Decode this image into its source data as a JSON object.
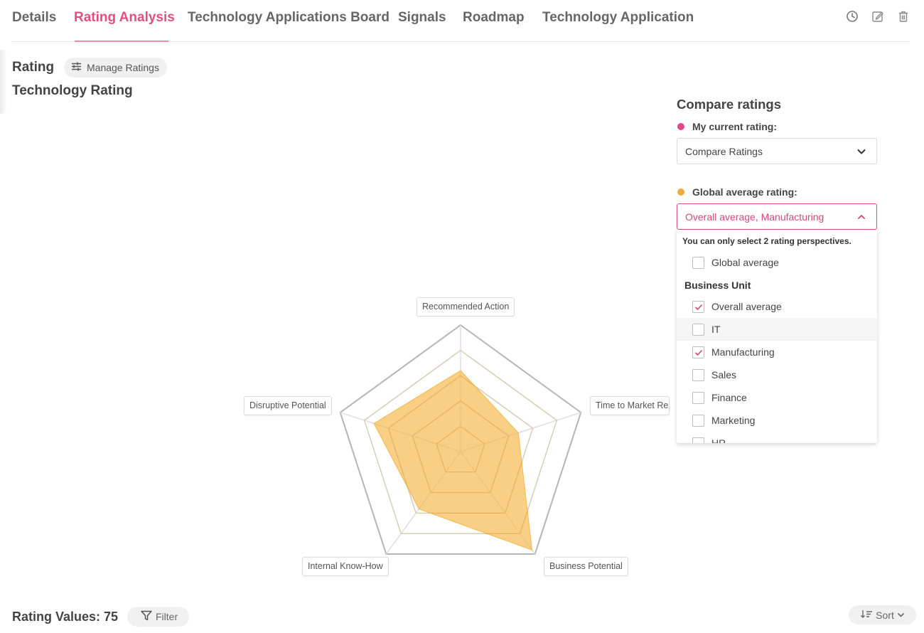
{
  "tabs": [
    {
      "label": "Details",
      "active": false
    },
    {
      "label": "Rating Analysis",
      "active": true
    },
    {
      "label": "Technology Applications Board",
      "active": false
    },
    {
      "label": "Signals",
      "active": false
    },
    {
      "label": "Roadmap",
      "active": false
    },
    {
      "label": "Technology Application",
      "active": false
    }
  ],
  "toolbar_icons": [
    "history-icon",
    "edit-icon",
    "delete-icon"
  ],
  "rating": {
    "title": "Rating",
    "manage_button": "Manage Ratings",
    "section_title": "Technology Rating"
  },
  "radar": {
    "axes": [
      "Recommended Action",
      "Time to Market Readiness",
      "Business Potential",
      "Internal Know-How",
      "Disruptive Potential"
    ],
    "max": 5,
    "levels": 5,
    "series": [
      {
        "values": [
          3.2,
          2.4,
          4.8,
          2.8,
          3.6
        ],
        "color": "#f5b84a"
      }
    ],
    "grid_color": "#c4c4c4"
  },
  "compare": {
    "title": "Compare ratings",
    "current_label": "My current rating:",
    "current_color": "#e0468a",
    "current_value": "Compare Ratings",
    "global_label": "Global average rating:",
    "global_color": "#f0a93c",
    "global_value": "Overall average, Manufacturing",
    "dropdown": {
      "note": "You can only select 2 rating perspectives.",
      "top_item": {
        "label": "Global average",
        "checked": false
      },
      "group_label": "Business Unit",
      "items": [
        {
          "label": "Overall average",
          "checked": true
        },
        {
          "label": "IT",
          "checked": false
        },
        {
          "label": "Manufacturing",
          "checked": true
        },
        {
          "label": "Sales",
          "checked": false
        },
        {
          "label": "Finance",
          "checked": false
        },
        {
          "label": "Marketing",
          "checked": false
        },
        {
          "label": "HR",
          "checked": false
        }
      ]
    }
  },
  "values": {
    "title": "Rating Values: 75",
    "filter_label": "Filter",
    "sort_label": "Sort"
  }
}
